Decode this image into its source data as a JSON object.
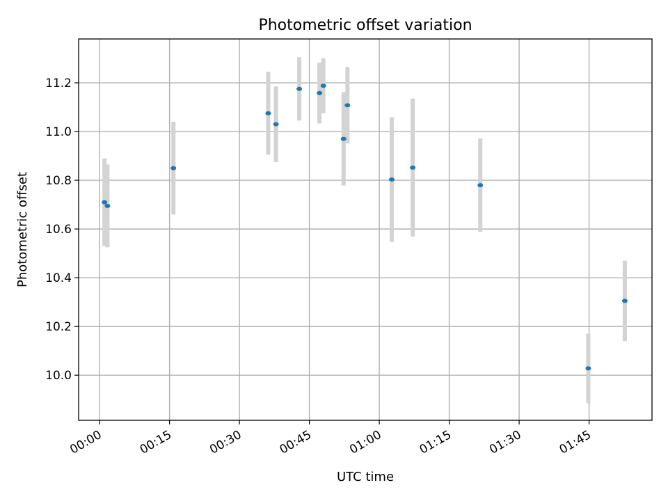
{
  "chart_data": {
    "type": "scatter",
    "title": "Photometric offset variation",
    "xlabel": "UTC time",
    "ylabel": "Photometric offset",
    "grid": true,
    "xlim": [
      "23:55:30",
      "01:58:30"
    ],
    "ylim": [
      9.815,
      11.38
    ],
    "xticks": [
      "00:00",
      "00:15",
      "00:30",
      "00:45",
      "01:00",
      "01:15",
      "01:30",
      "01:45"
    ],
    "yticks": [
      "10.0",
      "10.2",
      "10.4",
      "10.6",
      "10.8",
      "11.0",
      "11.2"
    ],
    "colors": {
      "point": "#1f77b4",
      "errorbar": "#d3d3d3"
    },
    "series": [
      {
        "points": [
          {
            "x": "00:01:03",
            "y": 10.71,
            "err": 0.18
          },
          {
            "x": "00:01:41",
            "y": 10.695,
            "err": 0.17
          },
          {
            "x": "00:15:50",
            "y": 10.85,
            "err": 0.19
          },
          {
            "x": "00:36:10",
            "y": 11.075,
            "err": 0.17
          },
          {
            "x": "00:37:50",
            "y": 11.03,
            "err": 0.155
          },
          {
            "x": "00:42:50",
            "y": 11.175,
            "err": 0.13
          },
          {
            "x": "00:47:10",
            "y": 11.158,
            "err": 0.125
          },
          {
            "x": "00:48:00",
            "y": 11.188,
            "err": 0.113
          },
          {
            "x": "00:52:20",
            "y": 10.97,
            "err": 0.192
          },
          {
            "x": "00:53:10",
            "y": 11.108,
            "err": 0.157
          },
          {
            "x": "01:02:40",
            "y": 10.803,
            "err": 0.256
          },
          {
            "x": "01:07:10",
            "y": 10.852,
            "err": 0.283
          },
          {
            "x": "01:21:40",
            "y": 10.78,
            "err": 0.192
          },
          {
            "x": "01:44:50",
            "y": 10.028,
            "err": 0.143
          },
          {
            "x": "01:52:40",
            "y": 10.305,
            "err": 0.165
          }
        ]
      }
    ]
  }
}
